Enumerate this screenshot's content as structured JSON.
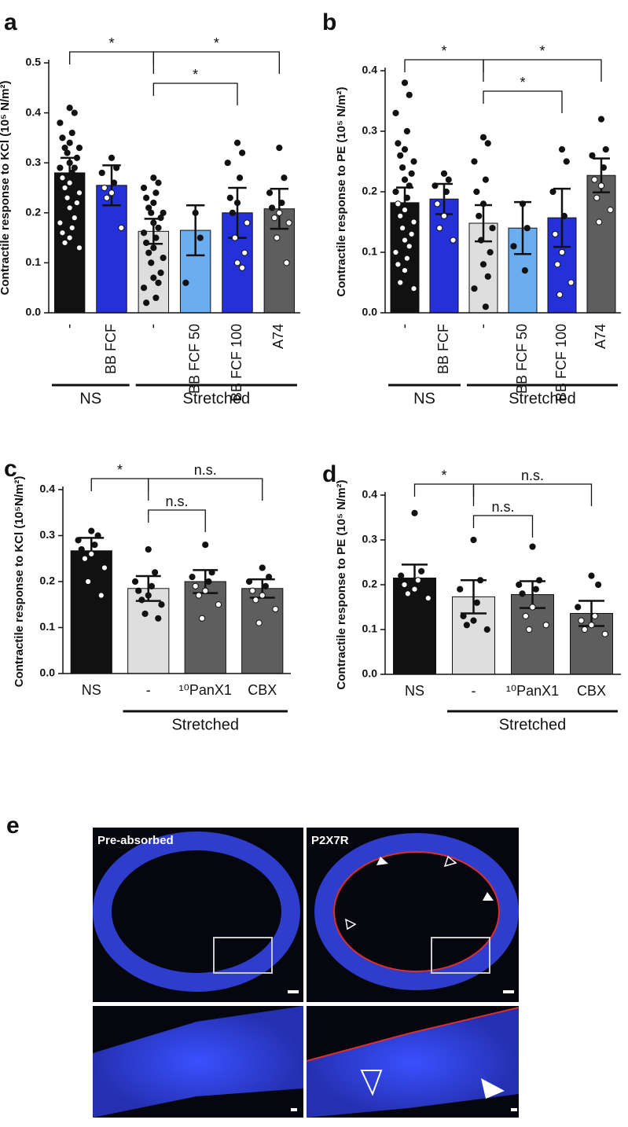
{
  "chart_data": [
    {
      "type": "bar",
      "panel": "a",
      "ylabel": "Contractile response to KCl (10⁵ N/m²)",
      "categories": [
        "-",
        "BB FCF",
        "-",
        "BB FCF 50",
        "BB FCF 100",
        "A74"
      ],
      "colors": [
        "#111111",
        "#2430d8",
        "#dedede",
        "#6aaef0",
        "#2430d8",
        "#5e5e5e"
      ],
      "values": [
        0.28,
        0.255,
        0.163,
        0.165,
        0.2,
        0.208
      ],
      "errors": [
        0.03,
        0.04,
        0.025,
        0.05,
        0.05,
        0.04
      ],
      "points": [
        [
          0.41,
          0.4,
          0.38,
          0.36,
          0.35,
          0.34,
          0.33,
          0.33,
          0.32,
          0.31,
          0.3,
          0.29,
          0.29,
          0.28,
          0.27,
          0.26,
          0.25,
          0.24,
          0.23,
          0.22,
          0.21,
          0.19,
          0.18,
          0.17,
          0.16,
          0.15,
          0.14,
          0.13
        ],
        [
          0.31,
          0.29,
          0.28,
          0.26,
          0.25,
          0.24,
          0.23,
          0.17
        ],
        [
          0.27,
          0.26,
          0.25,
          0.24,
          0.23,
          0.22,
          0.21,
          0.2,
          0.2,
          0.19,
          0.18,
          0.17,
          0.16,
          0.15,
          0.14,
          0.13,
          0.12,
          0.11,
          0.1,
          0.08,
          0.07,
          0.06,
          0.05,
          0.03,
          0.02
        ],
        [
          0.2,
          0.15,
          0.06
        ],
        [
          0.34,
          0.32,
          0.3,
          0.27,
          0.23,
          0.22,
          0.2,
          0.18,
          0.15,
          0.12,
          0.1,
          0.09
        ],
        [
          0.33,
          0.27,
          0.24,
          0.22,
          0.21,
          0.2,
          0.19,
          0.18,
          0.15,
          0.1
        ]
      ],
      "groups": [
        {
          "label": "NS",
          "from": 0,
          "to": 1
        },
        {
          "label": "Stretched",
          "from": 2,
          "to": 5
        }
      ],
      "brackets": [
        {
          "from": 0,
          "to": 2,
          "label": "*"
        },
        {
          "from": 2,
          "to": 4,
          "label": "*"
        },
        {
          "from": 2,
          "to": 5,
          "label": "*"
        }
      ],
      "ylim": [
        0,
        0.5
      ],
      "yticks": [
        {
          "value": 0,
          "label": "0.0"
        },
        0.1,
        0.2,
        0.3,
        0.4,
        0.5
      ]
    },
    {
      "type": "bar",
      "panel": "b",
      "ylabel": "Contractile response to PE (10⁵ N/m²)",
      "categories": [
        "-",
        "BB FCF",
        "-",
        "BB FCF 50",
        "BB FCF 100",
        "A74"
      ],
      "colors": [
        "#111111",
        "#2430d8",
        "#dedede",
        "#6aaef0",
        "#2430d8",
        "#5e5e5e"
      ],
      "values": [
        0.182,
        0.188,
        0.148,
        0.14,
        0.157,
        0.227
      ],
      "errors": [
        0.025,
        0.025,
        0.03,
        0.043,
        0.048,
        0.028
      ],
      "points": [
        [
          0.38,
          0.36,
          0.33,
          0.3,
          0.28,
          0.27,
          0.26,
          0.25,
          0.24,
          0.23,
          0.22,
          0.21,
          0.2,
          0.19,
          0.18,
          0.17,
          0.16,
          0.15,
          0.14,
          0.13,
          0.12,
          0.11,
          0.1,
          0.09,
          0.08,
          0.07,
          0.05,
          0.04
        ],
        [
          0.23,
          0.22,
          0.21,
          0.2,
          0.18,
          0.16,
          0.14,
          0.12
        ],
        [
          0.29,
          0.28,
          0.25,
          0.22,
          0.2,
          0.18,
          0.16,
          0.14,
          0.12,
          0.1,
          0.08,
          0.06,
          0.04,
          0.01
        ],
        [
          0.18,
          0.14,
          0.11,
          0.07
        ],
        [
          0.27,
          0.25,
          0.2,
          0.16,
          0.13,
          0.1,
          0.08,
          0.05,
          0.03
        ],
        [
          0.32,
          0.27,
          0.26,
          0.24,
          0.22,
          0.21,
          0.19,
          0.17,
          0.15
        ]
      ],
      "groups": [
        {
          "label": "NS",
          "from": 0,
          "to": 1
        },
        {
          "label": "Stretched",
          "from": 2,
          "to": 5
        }
      ],
      "brackets": [
        {
          "from": 0,
          "to": 2,
          "label": "*"
        },
        {
          "from": 2,
          "to": 4,
          "label": "*"
        },
        {
          "from": 2,
          "to": 5,
          "label": "*"
        }
      ],
      "ylim": [
        0,
        0.4
      ],
      "yticks": [
        {
          "value": 0,
          "label": "0.0"
        },
        0.1,
        0.2,
        0.3,
        0.4
      ]
    },
    {
      "type": "bar",
      "panel": "c",
      "ylabel": "Contractile response to KCl (10⁵N/m²)",
      "categories": [
        "NS",
        "-",
        "¹⁰PanX1",
        "CBX"
      ],
      "colors": [
        "#111111",
        "#dedede",
        "#5e5e5e",
        "#5e5e5e"
      ],
      "values": [
        0.267,
        0.185,
        0.2,
        0.185
      ],
      "errors": [
        0.028,
        0.027,
        0.025,
        0.02
      ],
      "points": [
        [
          0.31,
          0.3,
          0.29,
          0.28,
          0.27,
          0.26,
          0.25,
          0.23,
          0.2,
          0.17
        ],
        [
          0.27,
          0.22,
          0.2,
          0.19,
          0.18,
          0.17,
          0.16,
          0.15,
          0.13,
          0.12
        ],
        [
          0.28,
          0.22,
          0.21,
          0.2,
          0.19,
          0.18,
          0.17,
          0.15,
          0.12
        ],
        [
          0.23,
          0.21,
          0.2,
          0.19,
          0.18,
          0.17,
          0.16,
          0.14,
          0.11
        ]
      ],
      "groups": [
        {
          "label": "Stretched",
          "from": 1,
          "to": 3
        }
      ],
      "brackets": [
        {
          "from": 0,
          "to": 1,
          "label": "*"
        },
        {
          "from": 1,
          "to": 2,
          "label": "n.s."
        },
        {
          "from": 1,
          "to": 3,
          "label": "n.s."
        }
      ],
      "ylim": [
        0,
        0.4
      ],
      "yticks": [
        {
          "value": 0,
          "label": "0.0"
        },
        0.1,
        0.2,
        0.3,
        0.4
      ]
    },
    {
      "type": "bar",
      "panel": "d",
      "ylabel": "Contractile response to PE (10⁵ N/m²)",
      "categories": [
        "NS",
        "-",
        "¹⁰PanX1",
        "CBX"
      ],
      "colors": [
        "#111111",
        "#dedede",
        "#5e5e5e",
        "#5e5e5e"
      ],
      "values": [
        0.215,
        0.173,
        0.178,
        0.136
      ],
      "errors": [
        0.03,
        0.037,
        0.03,
        0.028
      ],
      "points": [
        [
          0.36,
          0.23,
          0.22,
          0.21,
          0.2,
          0.19,
          0.18,
          0.17
        ],
        [
          0.3,
          0.21,
          0.19,
          0.16,
          0.13,
          0.12,
          0.11,
          0.1
        ],
        [
          0.285,
          0.21,
          0.2,
          0.19,
          0.18,
          0.15,
          0.13,
          0.11,
          0.1
        ],
        [
          0.22,
          0.2,
          0.15,
          0.13,
          0.12,
          0.11,
          0.1,
          0.09
        ]
      ],
      "groups": [
        {
          "label": "Stretched",
          "from": 1,
          "to": 3
        }
      ],
      "brackets": [
        {
          "from": 0,
          "to": 1,
          "label": "*"
        },
        {
          "from": 1,
          "to": 2,
          "label": "n.s."
        },
        {
          "from": 1,
          "to": 3,
          "label": "n.s."
        }
      ],
      "ylim": [
        0,
        0.4
      ],
      "yticks": [
        {
          "value": 0,
          "label": "0.0"
        },
        0.1,
        0.2,
        0.3,
        0.4
      ]
    }
  ],
  "panel_e": {
    "panel": "e",
    "left_label": "Pre-absorbed",
    "right_label": "P2X7R"
  }
}
